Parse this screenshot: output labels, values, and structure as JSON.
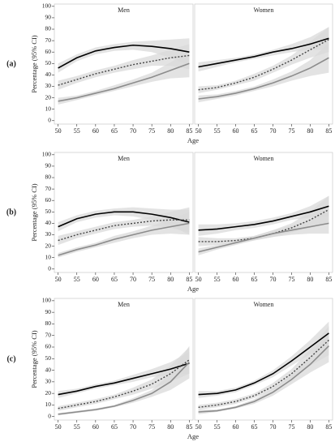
{
  "chart_data": [
    {
      "type": "line",
      "row_label": "(a)",
      "ylabel": "Percentage (95% CI)",
      "xlabel": "Age",
      "title": "Men",
      "x": [
        50,
        55,
        60,
        65,
        70,
        75,
        80,
        85
      ],
      "xlim": [
        49,
        86
      ],
      "xticks": [
        50,
        55,
        60,
        65,
        70,
        75,
        80,
        85
      ],
      "ylim": [
        -3,
        102
      ],
      "yticks": [
        0,
        10,
        20,
        30,
        40,
        50,
        60,
        70,
        80,
        90,
        100
      ],
      "band_color": "#d9d9d9",
      "series": [
        {
          "color": "#000000",
          "dash": false,
          "values": [
            46,
            55,
            61,
            64,
            66,
            65,
            63,
            60
          ],
          "ci_low": [
            42,
            52,
            58,
            61,
            62,
            60,
            55,
            48
          ],
          "ci_high": [
            50,
            58,
            64,
            67,
            69,
            70,
            71,
            72
          ]
        },
        {
          "color": "#444444",
          "dash": true,
          "values": [
            31,
            36,
            41,
            45,
            49,
            52,
            55,
            57
          ],
          "ci_low": [
            27,
            33,
            38,
            42,
            45,
            48,
            48,
            45
          ],
          "ci_high": [
            35,
            39,
            44,
            48,
            53,
            57,
            62,
            67
          ]
        },
        {
          "color": "#8c8c8c",
          "dash": false,
          "values": [
            17,
            20,
            24,
            28,
            33,
            38,
            44,
            50
          ],
          "ci_low": [
            14,
            18,
            22,
            26,
            30,
            34,
            37,
            38
          ],
          "ci_high": [
            20,
            22,
            26,
            31,
            36,
            42,
            51,
            61
          ]
        }
      ]
    },
    {
      "type": "line",
      "title": "Women",
      "x": [
        50,
        55,
        60,
        65,
        70,
        75,
        80,
        85
      ],
      "xlim": [
        49,
        86
      ],
      "xticks": [
        50,
        55,
        60,
        65,
        70,
        75,
        80,
        85
      ],
      "ylim": [
        -3,
        102
      ],
      "band_color": "#d9d9d9",
      "series": [
        {
          "color": "#000000",
          "dash": false,
          "values": [
            47,
            50,
            53,
            56,
            60,
            63,
            67,
            72
          ],
          "ci_low": [
            43,
            47,
            51,
            54,
            57,
            60,
            62,
            62
          ],
          "ci_high": [
            51,
            53,
            55,
            58,
            62,
            67,
            73,
            82
          ]
        },
        {
          "color": "#444444",
          "dash": true,
          "values": [
            27,
            29,
            33,
            38,
            45,
            53,
            62,
            71
          ],
          "ci_low": [
            24,
            27,
            31,
            35,
            42,
            49,
            55,
            60
          ],
          "ci_high": [
            30,
            31,
            35,
            41,
            48,
            57,
            69,
            82
          ]
        },
        {
          "color": "#8c8c8c",
          "dash": false,
          "values": [
            19,
            21,
            24,
            28,
            33,
            39,
            46,
            55
          ],
          "ci_low": [
            16,
            19,
            22,
            26,
            30,
            35,
            39,
            42
          ],
          "ci_high": [
            22,
            23,
            26,
            30,
            36,
            43,
            53,
            68
          ]
        }
      ]
    },
    {
      "type": "line",
      "row_label": "(b)",
      "ylabel": "Percentage (95% CI)",
      "xlabel": "Age",
      "title": "Men",
      "x": [
        50,
        55,
        60,
        65,
        70,
        75,
        80,
        85
      ],
      "xlim": [
        49,
        86
      ],
      "xticks": [
        50,
        55,
        60,
        65,
        70,
        75,
        80,
        85
      ],
      "ylim": [
        -3,
        102
      ],
      "yticks": [
        0,
        10,
        20,
        30,
        40,
        50,
        60,
        70,
        80,
        90,
        100
      ],
      "band_color": "#d9d9d9",
      "series": [
        {
          "color": "#000000",
          "dash": false,
          "values": [
            37,
            44,
            48,
            50,
            50,
            48,
            45,
            41
          ],
          "ci_low": [
            33,
            41,
            45,
            47,
            46,
            43,
            38,
            30
          ],
          "ci_high": [
            41,
            47,
            51,
            53,
            54,
            53,
            52,
            52
          ]
        },
        {
          "color": "#444444",
          "dash": true,
          "values": [
            25,
            30,
            34,
            38,
            40,
            42,
            43,
            43
          ],
          "ci_low": [
            21,
            27,
            31,
            35,
            37,
            38,
            36,
            32
          ],
          "ci_high": [
            29,
            33,
            37,
            41,
            43,
            46,
            50,
            54
          ]
        },
        {
          "color": "#8c8c8c",
          "dash": false,
          "values": [
            12,
            17,
            21,
            26,
            30,
            34,
            37,
            40
          ],
          "ci_low": [
            10,
            15,
            19,
            23,
            27,
            30,
            31,
            30
          ],
          "ci_high": [
            14,
            19,
            23,
            29,
            33,
            38,
            43,
            50
          ]
        }
      ]
    },
    {
      "type": "line",
      "title": "Women",
      "x": [
        50,
        55,
        60,
        65,
        70,
        75,
        80,
        85
      ],
      "xlim": [
        49,
        86
      ],
      "xticks": [
        50,
        55,
        60,
        65,
        70,
        75,
        80,
        85
      ],
      "ylim": [
        -3,
        102
      ],
      "band_color": "#d9d9d9",
      "series": [
        {
          "color": "#000000",
          "dash": false,
          "values": [
            34,
            35,
            37,
            39,
            42,
            46,
            50,
            55
          ],
          "ci_low": [
            29,
            31,
            34,
            36,
            39,
            43,
            45,
            46
          ],
          "ci_high": [
            39,
            39,
            40,
            42,
            45,
            49,
            55,
            64
          ]
        },
        {
          "color": "#444444",
          "dash": true,
          "values": [
            24,
            24,
            25,
            27,
            31,
            36,
            43,
            52
          ],
          "ci_low": [
            20,
            21,
            23,
            25,
            28,
            32,
            36,
            40
          ],
          "ci_high": [
            28,
            27,
            27,
            29,
            34,
            40,
            50,
            64
          ]
        },
        {
          "color": "#8c8c8c",
          "dash": false,
          "values": [
            15,
            19,
            23,
            27,
            31,
            34,
            37,
            40
          ],
          "ci_low": [
            12,
            17,
            21,
            25,
            28,
            30,
            31,
            31
          ],
          "ci_high": [
            18,
            21,
            25,
            29,
            34,
            38,
            43,
            50
          ]
        }
      ]
    },
    {
      "type": "line",
      "row_label": "(c)",
      "ylabel": "Percentage (95% CI)",
      "xlabel": "Age",
      "title": "Men",
      "x": [
        50,
        55,
        60,
        65,
        70,
        75,
        80,
        85
      ],
      "xlim": [
        49,
        86
      ],
      "xticks": [
        50,
        55,
        60,
        65,
        70,
        75,
        80,
        85
      ],
      "ylim": [
        -3,
        102
      ],
      "yticks": [
        0,
        10,
        20,
        30,
        40,
        50,
        60,
        70,
        80,
        90,
        100
      ],
      "band_color": "#d9d9d9",
      "series": [
        {
          "color": "#000000",
          "dash": false,
          "values": [
            19,
            22,
            26,
            29,
            33,
            37,
            41,
            46
          ],
          "ci_low": [
            16,
            20,
            24,
            27,
            30,
            34,
            36,
            37
          ],
          "ci_high": [
            22,
            24,
            28,
            31,
            36,
            41,
            47,
            56
          ]
        },
        {
          "color": "#444444",
          "dash": true,
          "values": [
            7,
            10,
            13,
            17,
            22,
            28,
            37,
            49
          ],
          "ci_low": [
            5,
            8,
            11,
            15,
            19,
            24,
            30,
            37
          ],
          "ci_high": [
            9,
            12,
            15,
            19,
            25,
            32,
            44,
            60
          ]
        },
        {
          "color": "#8c8c8c",
          "dash": false,
          "values": [
            2,
            4,
            6,
            9,
            14,
            20,
            30,
            47
          ],
          "ci_low": [
            1,
            3,
            5,
            8,
            12,
            17,
            23,
            33
          ],
          "ci_high": [
            3,
            5,
            7,
            10,
            16,
            23,
            37,
            61
          ]
        }
      ]
    },
    {
      "type": "line",
      "title": "Women",
      "x": [
        50,
        55,
        60,
        65,
        70,
        75,
        80,
        85
      ],
      "xlim": [
        49,
        86
      ],
      "xticks": [
        50,
        55,
        60,
        65,
        70,
        75,
        80,
        85
      ],
      "ylim": [
        -3,
        102
      ],
      "band_color": "#d9d9d9",
      "series": [
        {
          "color": "#000000",
          "dash": false,
          "values": [
            19,
            20,
            23,
            29,
            37,
            48,
            60,
            72
          ],
          "ci_low": [
            16,
            18,
            21,
            27,
            34,
            44,
            54,
            62
          ],
          "ci_high": [
            22,
            22,
            25,
            31,
            40,
            52,
            66,
            82
          ]
        },
        {
          "color": "#444444",
          "dash": true,
          "values": [
            8,
            10,
            13,
            18,
            26,
            37,
            51,
            66
          ],
          "ci_low": [
            6,
            8,
            11,
            16,
            23,
            33,
            44,
            53
          ],
          "ci_high": [
            10,
            12,
            15,
            20,
            29,
            41,
            58,
            78
          ]
        },
        {
          "color": "#8c8c8c",
          "dash": false,
          "values": [
            4,
            5,
            8,
            13,
            21,
            32,
            45,
            61
          ],
          "ci_low": [
            2,
            4,
            7,
            11,
            18,
            28,
            38,
            47
          ],
          "ci_high": [
            6,
            6,
            9,
            15,
            24,
            36,
            52,
            74
          ]
        }
      ]
    }
  ]
}
